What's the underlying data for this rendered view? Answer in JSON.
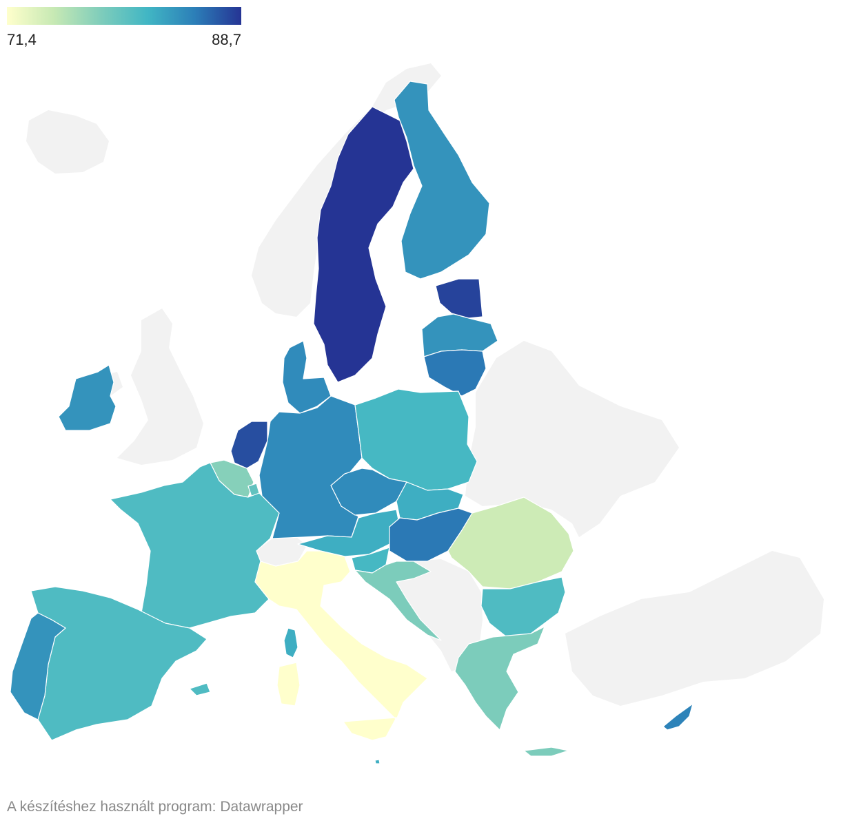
{
  "legend": {
    "min_label": "71,4",
    "max_label": "88,7",
    "min": 71.4,
    "max": 88.7,
    "colors": [
      "#ffffcc",
      "#c7e9b4",
      "#7fcdbb",
      "#41b6c4",
      "#2c7fb8",
      "#253494"
    ]
  },
  "map": {
    "no_data_color": "#f2f2f2",
    "countries": [
      {
        "id": "sweden",
        "value": 88.7
      },
      {
        "id": "estonia",
        "value": 88.0
      },
      {
        "id": "netherlands",
        "value": 87.5
      },
      {
        "id": "lithuania",
        "value": 85.5
      },
      {
        "id": "hungary",
        "value": 85.5
      },
      {
        "id": "germany",
        "value": 84.5
      },
      {
        "id": "czechia",
        "value": 84.5
      },
      {
        "id": "denmark",
        "value": 84.5
      },
      {
        "id": "finland",
        "value": 84.0
      },
      {
        "id": "latvia",
        "value": 84.0
      },
      {
        "id": "cyprus",
        "value": 85.0
      },
      {
        "id": "portugal",
        "value": 84.0
      },
      {
        "id": "ireland",
        "value": 84.0
      },
      {
        "id": "austria",
        "value": 82.3
      },
      {
        "id": "slovakia",
        "value": 82.3
      },
      {
        "id": "malta",
        "value": 82.3
      },
      {
        "id": "poland",
        "value": 81.5
      },
      {
        "id": "slovenia",
        "value": 81.5
      },
      {
        "id": "france",
        "value": 81.0
      },
      {
        "id": "bulgaria",
        "value": 81.0
      },
      {
        "id": "spain",
        "value": 81.0
      },
      {
        "id": "croatia",
        "value": 78.5
      },
      {
        "id": "greece",
        "value": 78.5
      },
      {
        "id": "belgium",
        "value": 78.0
      },
      {
        "id": "luxembourg",
        "value": 80.0
      },
      {
        "id": "romania",
        "value": 74.5
      },
      {
        "id": "italy",
        "value": 71.4
      }
    ]
  },
  "credit": "A készítéshez használt program: Datawrapper"
}
